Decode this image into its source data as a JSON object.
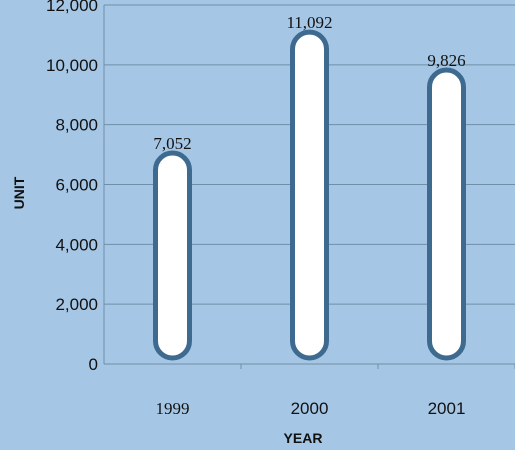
{
  "chart_data": {
    "type": "bar",
    "categories": [
      "1999",
      "2000",
      "2001"
    ],
    "values": [
      7052,
      11092,
      9826
    ],
    "data_labels": [
      "7,052",
      "11,092",
      "9,826"
    ],
    "title": "",
    "xlabel": "YEAR",
    "ylabel": "UNIT",
    "ylim": [
      0,
      12000
    ],
    "yticks": [
      0,
      2000,
      4000,
      6000,
      8000,
      10000,
      12000
    ],
    "ytick_labels": [
      "0",
      "2,000",
      "4,000",
      "6,000",
      "8,000",
      "10,000",
      "12,000"
    ],
    "grid": true,
    "legend": "none",
    "colors": {
      "background": "#a5c7e5",
      "bar_fill": "#ffffff",
      "bar_outline": "#3f6a8f",
      "gridline": "#6f8ea8",
      "axis": "#6f8ea8"
    }
  }
}
